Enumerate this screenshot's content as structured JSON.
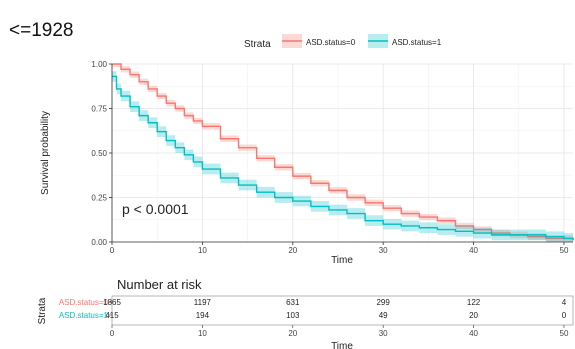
{
  "panel_label": "<=1928",
  "chart_data": [
    {
      "type": "line",
      "subtype": "kaplan-meier",
      "xlabel": "Time",
      "ylabel": "Survival probability",
      "xlim": [
        0,
        51
      ],
      "ylim": [
        0,
        1
      ],
      "xticks": [
        0,
        10,
        20,
        30,
        40,
        50
      ],
      "yticks": [
        0.0,
        0.25,
        0.5,
        0.75,
        1.0
      ],
      "ytick_labels": [
        "0.00",
        "0.25",
        "0.50",
        "0.75",
        "1.00"
      ],
      "grid": true,
      "legend": {
        "title": "Strata",
        "position": "top"
      },
      "annotation": "p < 0.0001",
      "series": [
        {
          "name": "ASD.status=0",
          "color": "#F8766D",
          "x": [
            0,
            1,
            2,
            3,
            4,
            5,
            6,
            7,
            8,
            9,
            10,
            12,
            14,
            16,
            18,
            20,
            22,
            24,
            26,
            28,
            30,
            32,
            34,
            36,
            38,
            40,
            42,
            44,
            46,
            48,
            50,
            51
          ],
          "y": [
            1.0,
            0.97,
            0.94,
            0.9,
            0.86,
            0.82,
            0.78,
            0.75,
            0.71,
            0.68,
            0.65,
            0.58,
            0.53,
            0.47,
            0.42,
            0.37,
            0.33,
            0.29,
            0.25,
            0.22,
            0.19,
            0.16,
            0.14,
            0.12,
            0.09,
            0.07,
            0.05,
            0.04,
            0.03,
            0.02,
            0.02,
            0.01
          ]
        },
        {
          "name": "ASD.status=1",
          "color": "#00BFC4",
          "x": [
            0,
            0.5,
            1,
            2,
            3,
            4,
            5,
            6,
            7,
            8,
            9,
            10,
            12,
            14,
            16,
            18,
            20,
            22,
            24,
            26,
            28,
            30,
            32,
            34,
            36,
            38,
            40,
            42,
            44,
            46,
            48,
            50,
            51
          ],
          "y": [
            0.93,
            0.86,
            0.82,
            0.76,
            0.71,
            0.67,
            0.62,
            0.57,
            0.53,
            0.49,
            0.45,
            0.41,
            0.36,
            0.32,
            0.28,
            0.25,
            0.23,
            0.2,
            0.18,
            0.16,
            0.12,
            0.1,
            0.09,
            0.08,
            0.07,
            0.06,
            0.05,
            0.04,
            0.04,
            0.04,
            0.03,
            0.02,
            0.01
          ]
        }
      ]
    },
    {
      "type": "table",
      "title": "Number at risk",
      "ylabel": "Strata",
      "xlabel": "Time",
      "columns": [
        0,
        10,
        20,
        30,
        40,
        50
      ],
      "rows": [
        {
          "name": "ASD.status=0",
          "color": "#F8766D",
          "values": [
            "1865",
            "1197",
            "631",
            "299",
            "122",
            "4"
          ]
        },
        {
          "name": "ASD.status=1",
          "color": "#00BFC4",
          "values": [
            "415",
            "194",
            "103",
            "49",
            "20",
            "0"
          ]
        }
      ]
    }
  ]
}
